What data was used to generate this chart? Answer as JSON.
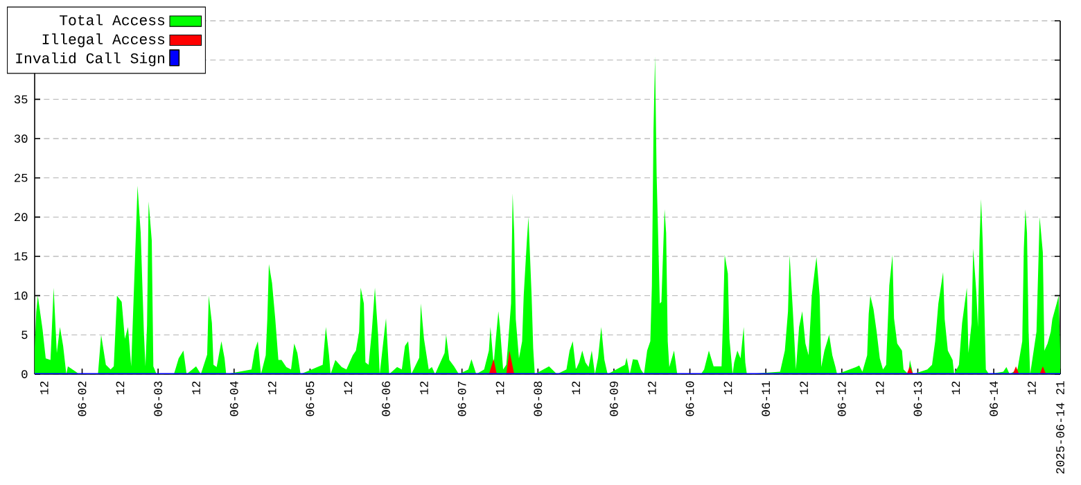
{
  "chart_data": {
    "type": "area",
    "xlim": [
      "2025-06-01T09:00",
      "2025-06-14T21:00"
    ],
    "xticks": [
      {
        "value": "2025-06-01T12:00",
        "label": "12"
      },
      {
        "value": "2025-06-02T00:00",
        "label": "06-02"
      },
      {
        "value": "2025-06-02T12:00",
        "label": "12"
      },
      {
        "value": "2025-06-03T00:00",
        "label": "06-03"
      },
      {
        "value": "2025-06-03T12:00",
        "label": "12"
      },
      {
        "value": "2025-06-04T00:00",
        "label": "06-04"
      },
      {
        "value": "2025-06-04T12:00",
        "label": "12"
      },
      {
        "value": "2025-06-05T00:00",
        "label": "06-05"
      },
      {
        "value": "2025-06-05T12:00",
        "label": "12"
      },
      {
        "value": "2025-06-06T00:00",
        "label": "06-06"
      },
      {
        "value": "2025-06-06T12:00",
        "label": "12"
      },
      {
        "value": "2025-06-07T00:00",
        "label": "06-07"
      },
      {
        "value": "2025-06-07T12:00",
        "label": "12"
      },
      {
        "value": "2025-06-08T00:00",
        "label": "06-08"
      },
      {
        "value": "2025-06-08T12:00",
        "label": "12"
      },
      {
        "value": "2025-06-09T00:00",
        "label": "06-09"
      },
      {
        "value": "2025-06-09T12:00",
        "label": "12"
      },
      {
        "value": "2025-06-10T00:00",
        "label": "06-10"
      },
      {
        "value": "2025-06-10T12:00",
        "label": "12"
      },
      {
        "value": "2025-06-11T00:00",
        "label": "06-11"
      },
      {
        "value": "2025-06-11T12:00",
        "label": "12"
      },
      {
        "value": "2025-06-12T00:00",
        "label": "06-12"
      },
      {
        "value": "2025-06-12T12:00",
        "label": "12"
      },
      {
        "value": "2025-06-13T00:00",
        "label": "06-13"
      },
      {
        "value": "2025-06-13T12:00",
        "label": "12"
      },
      {
        "value": "2025-06-14T00:00",
        "label": "06-14"
      },
      {
        "value": "2025-06-14T12:00",
        "label": "12"
      },
      {
        "value": "2025-06-14T21:00",
        "label": "2025-06-14 21"
      }
    ],
    "ylim": [
      0,
      45
    ],
    "yticks": [
      0,
      5,
      10,
      15,
      20,
      25,
      30,
      35,
      {
        "value": 40,
        "label": null
      },
      {
        "value": 45,
        "label": null
      }
    ],
    "grid": "y",
    "legend": "top left",
    "series": [
      {
        "name": "Total Access",
        "color": "#00ff00",
        "x": [
          "2025-06-01T09:00",
          "2025-06-01T09:30",
          "2025-06-01T10:00",
          "2025-06-01T11:30",
          "2025-06-01T12:30",
          "2025-06-01T14:00",
          "2025-06-01T15:00",
          "2025-06-01T16:00",
          "2025-06-01T17:00",
          "2025-06-01T18:00",
          "2025-06-01T19:00",
          "2025-06-01T19:30",
          "2025-06-01T22:00",
          "2025-06-01T23:00",
          "2025-06-02T05:00",
          "2025-06-02T06:00",
          "2025-06-02T07:30",
          "2025-06-02T09:00",
          "2025-06-02T10:00",
          "2025-06-02T11:00",
          "2025-06-02T12:30",
          "2025-06-02T13:30",
          "2025-06-02T14:30",
          "2025-06-02T15:30",
          "2025-06-02T17:00",
          "2025-06-02T17:30",
          "2025-06-02T18:30",
          "2025-06-02T19:30",
          "2025-06-02T20:00",
          "2025-06-02T20:30",
          "2025-06-02T21:00",
          "2025-06-02T22:00",
          "2025-06-02T22:30",
          "2025-06-02T23:30",
          "2025-06-03T05:00",
          "2025-06-03T06:30",
          "2025-06-03T08:00",
          "2025-06-03T09:00",
          "2025-06-03T12:00",
          "2025-06-03T13:30",
          "2025-06-03T15:30",
          "2025-06-03T16:00",
          "2025-06-03T17:00",
          "2025-06-03T17:30",
          "2025-06-03T18:30",
          "2025-06-03T20:00",
          "2025-06-03T21:00",
          "2025-06-03T21:30",
          "2025-06-04T05:30",
          "2025-06-04T06:30",
          "2025-06-04T07:30",
          "2025-06-04T08:30",
          "2025-06-04T10:00",
          "2025-06-04T10:30",
          "2025-06-04T11:00",
          "2025-06-04T12:00",
          "2025-06-04T13:00",
          "2025-06-04T14:00",
          "2025-06-04T15:00",
          "2025-06-04T16:30",
          "2025-06-04T18:00",
          "2025-06-04T19:00",
          "2025-06-04T20:00",
          "2025-06-04T21:00",
          "2025-06-05T04:00",
          "2025-06-05T05:00",
          "2025-06-05T06:00",
          "2025-06-05T06:30",
          "2025-06-05T08:00",
          "2025-06-05T10:00",
          "2025-06-05T11:30",
          "2025-06-05T13:30",
          "2025-06-05T14:30",
          "2025-06-05T15:30",
          "2025-06-05T16:00",
          "2025-06-05T17:00",
          "2025-06-05T17:30",
          "2025-06-05T18:30",
          "2025-06-05T19:30",
          "2025-06-05T20:30",
          "2025-06-05T21:30",
          "2025-06-05T22:00",
          "2025-06-05T23:30",
          "2025-06-06T00:00",
          "2025-06-06T01:00",
          "2025-06-06T03:30",
          "2025-06-06T05:00",
          "2025-06-06T06:00",
          "2025-06-06T07:00",
          "2025-06-06T08:00",
          "2025-06-06T10:30",
          "2025-06-06T11:00",
          "2025-06-06T12:00",
          "2025-06-06T13:30",
          "2025-06-06T14:30",
          "2025-06-06T15:30",
          "2025-06-06T16:30",
          "2025-06-06T18:30",
          "2025-06-06T19:00",
          "2025-06-06T20:00",
          "2025-06-06T21:30",
          "2025-06-06T23:00",
          "2025-06-07T02:00",
          "2025-06-07T03:00",
          "2025-06-07T04:30",
          "2025-06-07T07:00",
          "2025-06-07T08:30",
          "2025-06-07T09:00",
          "2025-06-07T10:00",
          "2025-06-07T10:30",
          "2025-06-07T11:30",
          "2025-06-07T12:00",
          "2025-06-07T13:00",
          "2025-06-07T14:00",
          "2025-06-07T14:30",
          "2025-06-07T15:30",
          "2025-06-07T16:00",
          "2025-06-07T16:30",
          "2025-06-07T17:00",
          "2025-06-07T18:00",
          "2025-06-07T19:00",
          "2025-06-07T19:30",
          "2025-06-07T20:30",
          "2025-06-07T21:00",
          "2025-06-07T22:00",
          "2025-06-07T22:30",
          "2025-06-07T23:00",
          "2025-06-08T03:30",
          "2025-06-08T06:00",
          "2025-06-08T09:00",
          "2025-06-08T10:00",
          "2025-06-08T11:00",
          "2025-06-08T12:00",
          "2025-06-08T13:00",
          "2025-06-08T14:00",
          "2025-06-08T15:00",
          "2025-06-08T16:00",
          "2025-06-08T17:00",
          "2025-06-08T18:00",
          "2025-06-08T19:00",
          "2025-06-08T20:00",
          "2025-06-08T21:00",
          "2025-06-08T22:00",
          "2025-06-09T03:30",
          "2025-06-09T04:00",
          "2025-06-09T05:00",
          "2025-06-09T06:00",
          "2025-06-09T07:30",
          "2025-06-09T08:30",
          "2025-06-09T09:30",
          "2025-06-09T10:30",
          "2025-06-09T11:30",
          "2025-06-09T12:00",
          "2025-06-09T12:30",
          "2025-06-09T13:00",
          "2025-06-09T13:30",
          "2025-06-09T14:30",
          "2025-06-09T15:00",
          "2025-06-09T16:00",
          "2025-06-09T16:30",
          "2025-06-09T17:00",
          "2025-06-09T17:30",
          "2025-06-09T19:00",
          "2025-06-09T20:00",
          "2025-06-10T03:30",
          "2025-06-10T04:30",
          "2025-06-10T06:00",
          "2025-06-10T07:30",
          "2025-06-10T10:00",
          "2025-06-10T10:30",
          "2025-06-10T11:00",
          "2025-06-10T12:00",
          "2025-06-10T12:30",
          "2025-06-10T13:30",
          "2025-06-10T14:00",
          "2025-06-10T15:00",
          "2025-06-10T16:00",
          "2025-06-10T17:00",
          "2025-06-10T17:30",
          "2025-06-10T18:00",
          "2025-06-11T04:30",
          "2025-06-11T06:00",
          "2025-06-11T07:00",
          "2025-06-11T07:30",
          "2025-06-11T08:30",
          "2025-06-11T09:30",
          "2025-06-11T10:30",
          "2025-06-11T11:30",
          "2025-06-11T12:30",
          "2025-06-11T13:30",
          "2025-06-11T14:30",
          "2025-06-11T15:30",
          "2025-06-11T16:00",
          "2025-06-11T17:00",
          "2025-06-11T17:30",
          "2025-06-11T18:30",
          "2025-06-11T20:00",
          "2025-06-11T21:00",
          "2025-06-11T22:00",
          "2025-06-11T22:30",
          "2025-06-12T04:30",
          "2025-06-12T05:30",
          "2025-06-12T06:30",
          "2025-06-12T08:00",
          "2025-06-12T08:30",
          "2025-06-12T09:00",
          "2025-06-12T10:00",
          "2025-06-12T11:00",
          "2025-06-12T12:00",
          "2025-06-12T13:00",
          "2025-06-12T14:00",
          "2025-06-12T15:00",
          "2025-06-12T16:00",
          "2025-06-12T16:30",
          "2025-06-12T17:30",
          "2025-06-12T19:00",
          "2025-06-12T19:30",
          "2025-06-12T21:00",
          "2025-06-12T21:30",
          "2025-06-12T22:30",
          "2025-06-13T03:00",
          "2025-06-13T04:30",
          "2025-06-13T05:30",
          "2025-06-13T06:30",
          "2025-06-13T08:00",
          "2025-06-13T08:30",
          "2025-06-13T09:30",
          "2025-06-13T11:00",
          "2025-06-13T11:30",
          "2025-06-13T13:00",
          "2025-06-13T14:00",
          "2025-06-13T15:30",
          "2025-06-13T16:00",
          "2025-06-13T17:00",
          "2025-06-13T17:30",
          "2025-06-13T18:30",
          "2025-06-13T19:00",
          "2025-06-13T19:30",
          "2025-06-13T20:00",
          "2025-06-13T20:30",
          "2025-06-13T21:30",
          "2025-06-13T22:30",
          "2025-06-14T03:00",
          "2025-06-14T04:00",
          "2025-06-14T05:00",
          "2025-06-14T07:30",
          "2025-06-14T09:00",
          "2025-06-14T09:30",
          "2025-06-14T10:00",
          "2025-06-14T10:30",
          "2025-06-14T11:00",
          "2025-06-14T11:30",
          "2025-06-14T13:30",
          "2025-06-14T14:30",
          "2025-06-14T15:30",
          "2025-06-14T16:00",
          "2025-06-14T17:00",
          "2025-06-14T18:00",
          "2025-06-14T18:30",
          "2025-06-14T20:00",
          "2025-06-14T20:30",
          "2025-06-14T21:00"
        ],
        "values": [
          3.3,
          7.9,
          10,
          5.7,
          2,
          1.8,
          11,
          2.7,
          6,
          3.6,
          0,
          1,
          0.3,
          0,
          0,
          5,
          1.2,
          0.6,
          1,
          10,
          9.2,
          4.5,
          6,
          1,
          18,
          24,
          18,
          5.4,
          1,
          6.2,
          22,
          17,
          1,
          0,
          0,
          2,
          3,
          0,
          1,
          0,
          2.5,
          10,
          6.5,
          1.2,
          0.9,
          4.2,
          2,
          0,
          0.6,
          3,
          4.2,
          0,
          2.4,
          7,
          14,
          11.6,
          7.1,
          1.8,
          1.8,
          0.9,
          0.6,
          3.9,
          2.7,
          0,
          1.2,
          6,
          2.4,
          0,
          1.8,
          0.9,
          0.6,
          2.4,
          3,
          5.4,
          11,
          9,
          1.5,
          1.2,
          5.4,
          11,
          5,
          0,
          5.4,
          7.1,
          0,
          0.9,
          0.6,
          3.6,
          4.2,
          0,
          2.1,
          9,
          4.5,
          0.6,
          0.9,
          0,
          0.9,
          2.7,
          5,
          1.8,
          1,
          0,
          0.6,
          1.9,
          0,
          0.6,
          3,
          6,
          1.2,
          3.6,
          8,
          6,
          0.6,
          1.2,
          3.6,
          9,
          23,
          18,
          7,
          2,
          4.2,
          10,
          17,
          20,
          10,
          3.3,
          0,
          1,
          0,
          0.6,
          3,
          4.2,
          0.6,
          1.5,
          3,
          1.5,
          0.9,
          3,
          0,
          2.1,
          6,
          1.8,
          0,
          1.2,
          2.1,
          0,
          1.9,
          1.8,
          0.6,
          0,
          3,
          4.2,
          11.3,
          31,
          40.5,
          25.3,
          9,
          9.2,
          21,
          18,
          4.2,
          0.9,
          3,
          0,
          0,
          0.6,
          3,
          1,
          1,
          7.4,
          15.2,
          12.8,
          4.5,
          0,
          1.5,
          3,
          2,
          6,
          1.5,
          0,
          0.3,
          3,
          8,
          15.2,
          8.3,
          0.6,
          6,
          8,
          3.9,
          2.4,
          10,
          13.4,
          14.9,
          10,
          0.9,
          3,
          5,
          2.4,
          0.9,
          0,
          0.9,
          1.1,
          0.3,
          2.4,
          7.7,
          10,
          8.3,
          5.4,
          2,
          0.6,
          1.2,
          11.3,
          15.2,
          7.1,
          3.9,
          3,
          0.6,
          0,
          1.8,
          0,
          0.6,
          1.2,
          4.2,
          9,
          13,
          7,
          3,
          1.8,
          0,
          1.2,
          6.5,
          11,
          2.7,
          6.5,
          16,
          10.4,
          6,
          17,
          22.3,
          17,
          0.6,
          0,
          0.3,
          0.9,
          0,
          0.6,
          4.2,
          16,
          21,
          18,
          5.4,
          0,
          5.4,
          20,
          15.5,
          3,
          3.9,
          5.4,
          7,
          9.2,
          10,
          3
        ]
      },
      {
        "name": "Illegal Access",
        "color": "#ff0000",
        "x": [
          "2025-06-01T09:00",
          "2025-06-07T08:30",
          "2025-06-07T10:00",
          "2025-06-07T11:00",
          "2025-06-07T14:00",
          "2025-06-07T15:00",
          "2025-06-07T16:30",
          "2025-06-12T20:30",
          "2025-06-12T21:30",
          "2025-06-12T22:30",
          "2025-06-14T06:00",
          "2025-06-14T07:00",
          "2025-06-14T08:00",
          "2025-06-14T14:30",
          "2025-06-14T15:30",
          "2025-06-14T16:30",
          "2025-06-14T21:00"
        ],
        "values": [
          0,
          0,
          1.9,
          0,
          0,
          3,
          0,
          0,
          1,
          0,
          0,
          1,
          0,
          0,
          1,
          0,
          0
        ]
      },
      {
        "name": "Invalid Call Sign",
        "color": "#0000ff",
        "type": "line",
        "x": [
          "2025-06-01T09:00",
          "2025-06-14T21:00"
        ],
        "values": [
          0,
          0
        ]
      }
    ]
  }
}
